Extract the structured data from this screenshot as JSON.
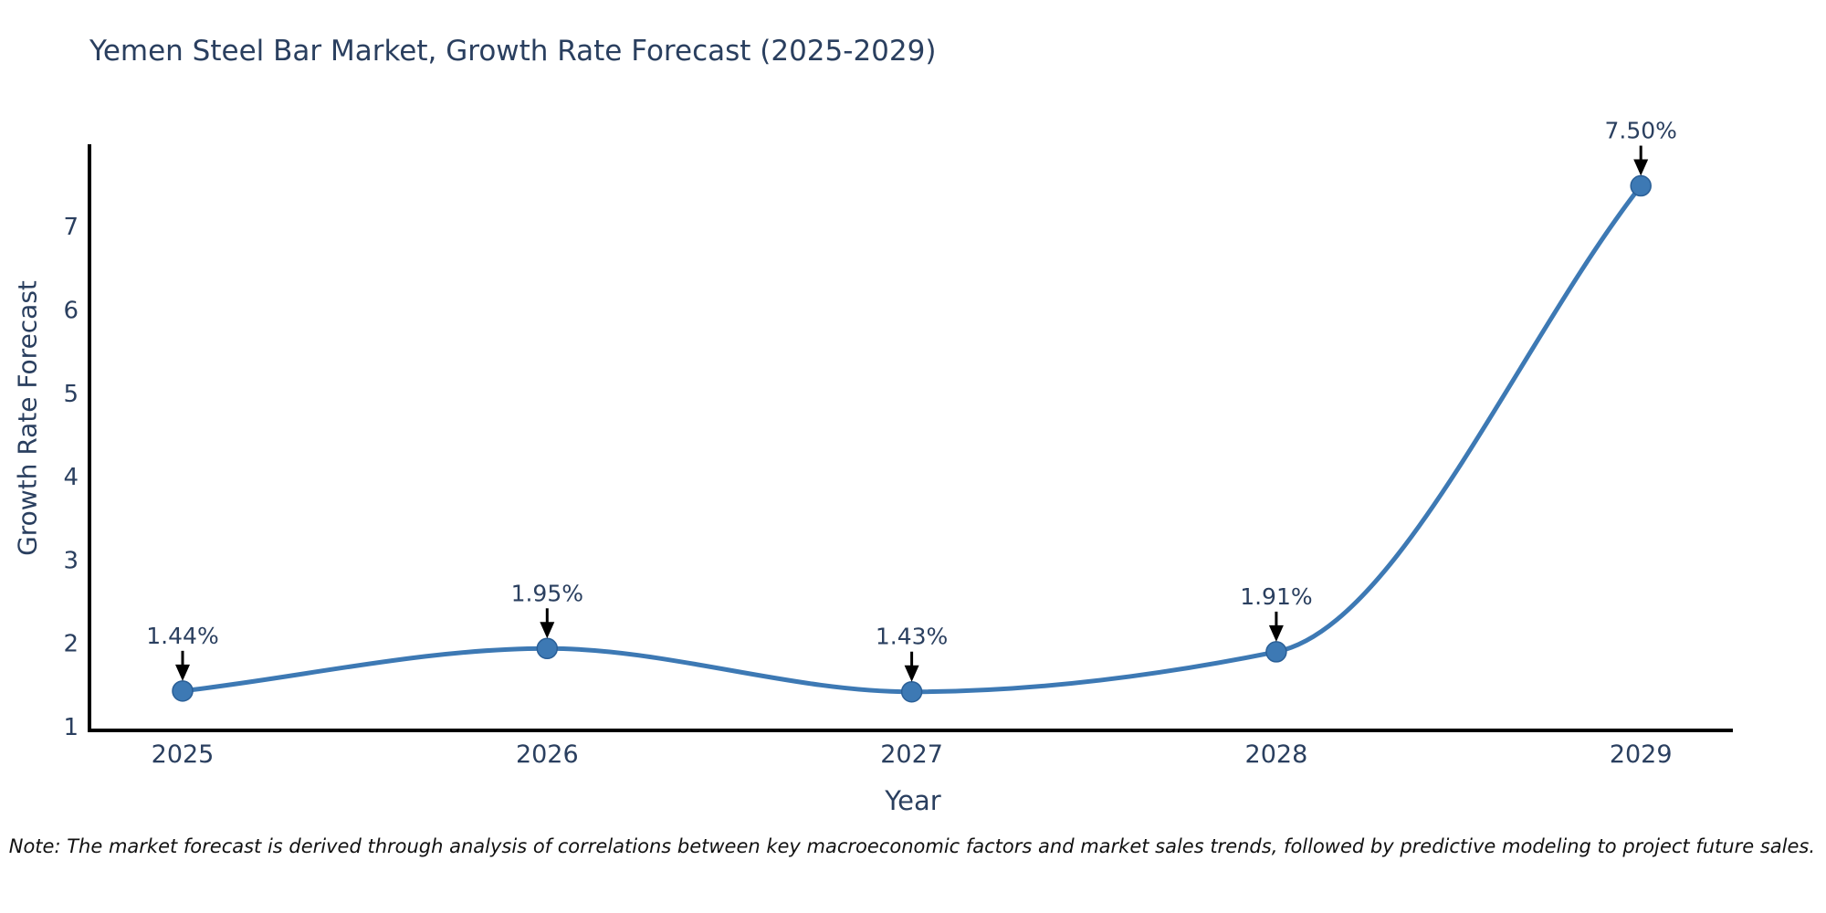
{
  "chart_data": {
    "type": "line",
    "title": "Yemen Steel Bar Market, Growth Rate Forecast (2025-2029)",
    "xlabel": "Year",
    "ylabel": "Growth Rate Forecast",
    "categories": [
      "2025",
      "2026",
      "2027",
      "2028",
      "2029"
    ],
    "series": [
      {
        "name": "Growth Rate Forecast",
        "values": [
          1.44,
          1.95,
          1.43,
          1.91,
          7.5
        ]
      }
    ],
    "point_labels": [
      "1.44%",
      "1.95%",
      "1.43%",
      "1.91%",
      "7.50%"
    ],
    "yticks": [
      "1",
      "2",
      "3",
      "4",
      "5",
      "6",
      "7"
    ],
    "ylim": [
      0.95,
      8.0
    ],
    "line_shape": "spline",
    "grid": false,
    "legend": "none",
    "colors": {
      "line": "#3d79b4",
      "marker": "#3d79b4",
      "marker_edge": "#2a5f97",
      "axis": "#000000",
      "text": "#2a3f5f",
      "annotation_text": "#2a3f5f",
      "annotation_arrow": "#000000",
      "background": "#ffffff"
    }
  },
  "note": {
    "text": "Note: The market forecast is derived through analysis of correlations between key macroeconomic factors and market sales trends, followed by predictive modeling to project future sales."
  }
}
